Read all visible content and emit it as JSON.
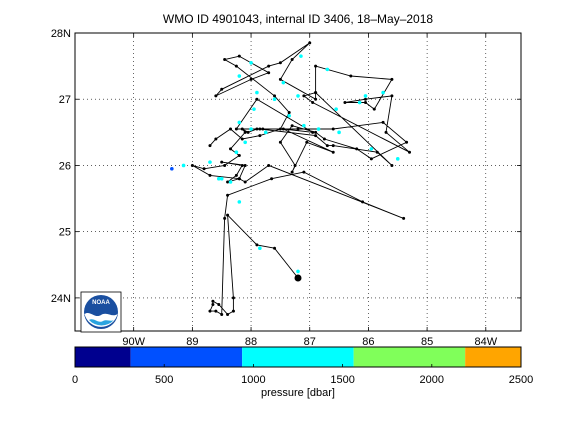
{
  "chart_data": {
    "type": "scatter",
    "title": "WMO ID 4901043, internal ID 3406, 18–May–2018",
    "xlim": [
      -91.0,
      -83.4
    ],
    "ylim": [
      23.5,
      28.0
    ],
    "x_ticks": [
      -90,
      -89,
      -88,
      -87,
      -86,
      -85,
      -84
    ],
    "x_tick_labels": [
      "90W",
      "89",
      "88",
      "87",
      "86",
      "85",
      "84W"
    ],
    "y_ticks": [
      24,
      25,
      26,
      27,
      28
    ],
    "y_tick_labels": [
      "24N",
      "25",
      "26",
      "27",
      "28N"
    ],
    "grid": true,
    "grid_style": "dotted",
    "track": {
      "lon": [
        -87.2,
        -87.6,
        -87.9,
        -88.4,
        -88.3,
        -88.3,
        -88.4,
        -88.55,
        -88.65,
        -88.65,
        -88.7,
        -88.6,
        -88.5,
        -88.45,
        -88.4,
        -87.65,
        -87.1,
        -86.1,
        -85.4,
        -87.7,
        -88.1,
        -88.2,
        -88.4,
        -88.25,
        -88.15,
        -88.5,
        -88.1,
        -88.2,
        -88.7,
        -89.0,
        -88.8,
        -88.45,
        -88.2,
        -88.35,
        -88.1,
        -88.15,
        -88.05,
        -87.9,
        -87.8,
        -87.2,
        -86.6,
        -85.75,
        -85.35,
        -85.95,
        -86.2,
        -86.75,
        -86.9,
        -87.3,
        -87.5,
        -87.25,
        -87.3,
        -87.05,
        -86.6,
        -87.45,
        -86.95,
        -87.9,
        -88.25,
        -87.85,
        -86.9,
        -86.7,
        -86.6,
        -85.85,
        -85.6,
        -86.9,
        -86.9,
        -86.3,
        -85.6,
        -85.9,
        -86.05,
        -86.4,
        -86.05,
        -85.6,
        -85.7,
        -85.3,
        -86.95,
        -87.1,
        -86.9,
        -86.9,
        -87.5,
        -87.3,
        -87.0,
        -87.5,
        -87.7,
        -88.5,
        -88.6,
        -88.0,
        -87.7,
        -88.2,
        -88.45,
        -88.25,
        -87.6,
        -87.35,
        -87.5,
        -87.85,
        -88.15,
        -88.35,
        -88.6,
        -88.7
      ],
      "lat": [
        24.3,
        24.75,
        24.8,
        25.25,
        24.0,
        23.8,
        23.75,
        23.9,
        23.95,
        23.9,
        23.8,
        23.8,
        23.75,
        25.2,
        25.55,
        25.8,
        25.9,
        25.45,
        25.2,
        26.0,
        25.75,
        25.8,
        25.75,
        25.85,
        26.0,
        26.05,
        26.0,
        25.8,
        25.85,
        26.0,
        25.95,
        26.0,
        26.15,
        26.25,
        26.5,
        26.55,
        26.5,
        26.55,
        26.55,
        26.55,
        26.55,
        26.65,
        26.35,
        26.1,
        26.25,
        26.4,
        26.5,
        26.6,
        26.35,
        26.0,
        25.9,
        26.35,
        26.2,
        26.55,
        26.5,
        27.0,
        26.55,
        26.55,
        26.45,
        26.3,
        26.3,
        26.2,
        26.0,
        27.1,
        27.5,
        27.35,
        27.3,
        26.85,
        26.95,
        26.95,
        27.0,
        27.05,
        26.5,
        26.2,
        26.95,
        27.05,
        27.1,
        27.0,
        27.3,
        27.6,
        27.85,
        27.55,
        27.5,
        27.15,
        27.05,
        27.3,
        27.4,
        27.65,
        27.6,
        27.5,
        27.05,
        26.8,
        26.55,
        26.45,
        26.4,
        26.55,
        26.4,
        26.3
      ],
      "line_color": "#000000",
      "marker_color": "#000000"
    },
    "profiles": {
      "pressure_dbar": [
        1050,
        1050,
        1050,
        1050,
        1050,
        650,
        1050,
        1050,
        1050,
        1050,
        1050,
        1050,
        1050,
        1050,
        1050,
        1050,
        1050,
        1050,
        1050,
        1050,
        1050,
        1050,
        1050,
        1050,
        1050,
        1050,
        1050,
        1050,
        1050,
        1050,
        1050,
        1050,
        1050
      ],
      "lon": [
        -87.2,
        -87.85,
        -88.2,
        -88.55,
        -88.35,
        -89.35,
        -89.15,
        -88.7,
        -88.5,
        -88.25,
        -88.1,
        -88.0,
        -88.2,
        -87.95,
        -87.6,
        -87.2,
        -86.85,
        -86.5,
        -85.95,
        -85.5,
        -86.15,
        -85.75,
        -86.05,
        -86.55,
        -86.7,
        -87.15,
        -87.45,
        -87.9,
        -88.2,
        -88.0,
        -87.35,
        -87.75,
        -87.1
      ],
      "lat": [
        24.4,
        24.75,
        25.45,
        25.8,
        25.75,
        25.95,
        26.0,
        26.05,
        25.8,
        26.2,
        26.35,
        26.55,
        26.65,
        26.85,
        27.0,
        27.05,
        26.55,
        26.5,
        26.25,
        26.1,
        26.95,
        27.1,
        27.05,
        26.85,
        27.45,
        27.65,
        27.25,
        27.1,
        27.35,
        27.55,
        26.75,
        26.5,
        26.6
      ]
    },
    "colorbar": {
      "label": "pressure [dbar]",
      "ticks": [
        0,
        500,
        1000,
        1500,
        2000,
        2500
      ],
      "tick_labels": [
        "0",
        "500",
        "1000",
        "1500",
        "2000",
        "2500"
      ],
      "range": [
        0,
        2500
      ],
      "bins": [
        {
          "from": 0,
          "to": 312,
          "color": "#00008f"
        },
        {
          "from": 312,
          "to": 937,
          "color": "#0050ff"
        },
        {
          "from": 937,
          "to": 1562,
          "color": "#00ffff"
        },
        {
          "from": 1562,
          "to": 2187,
          "color": "#80ff5a"
        },
        {
          "from": 2187,
          "to": 2500,
          "color": "#ffa500"
        }
      ]
    },
    "logo": {
      "text": "NOAA"
    }
  }
}
